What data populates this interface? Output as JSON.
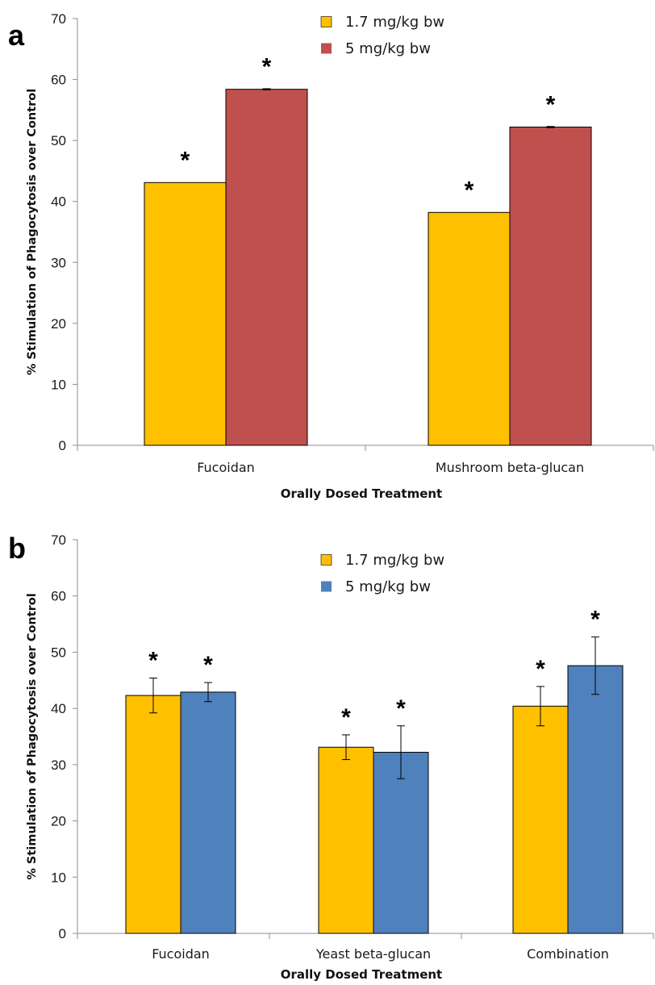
{
  "chart_data": [
    {
      "panel_label": "a",
      "type": "bar",
      "xlabel": "Orally Dosed Treatment",
      "ylabel": "% Stimulation of Phagocytosis over Control",
      "ylim": [
        0,
        70
      ],
      "yticks": [
        "0",
        "10",
        "20",
        "30",
        "40",
        "50",
        "60",
        "70"
      ],
      "categories": [
        "Fucoidan",
        "Mushroom beta-glucan"
      ],
      "series": [
        {
          "name": "1.7 mg/kg bw",
          "color": "#FFC000",
          "values": [
            43.1,
            38.2
          ],
          "errors": [
            0,
            0
          ],
          "marks": [
            "*",
            "*"
          ]
        },
        {
          "name": "5 mg/kg bw",
          "color": "#C0504D",
          "values": [
            58.4,
            52.2
          ],
          "errors": [
            0.1,
            0.1
          ],
          "marks": [
            "*",
            "*"
          ]
        }
      ],
      "legend_position": "top-center",
      "grid": false
    },
    {
      "panel_label": "b",
      "type": "bar",
      "xlabel": "Orally Dosed Treatment",
      "ylabel": "% Stimulation of Phagocytosis over Control",
      "ylim": [
        0,
        70
      ],
      "yticks": [
        "0",
        "10",
        "20",
        "30",
        "40",
        "50",
        "60",
        "70"
      ],
      "categories": [
        "Fucoidan",
        "Yeast beta-glucan",
        "Combination"
      ],
      "series": [
        {
          "name": "1.7 mg/kg bw",
          "color": "#FFC000",
          "values": [
            42.3,
            33.1,
            40.4
          ],
          "errors": [
            3.1,
            2.2,
            3.5
          ],
          "marks": [
            "*",
            "*",
            "*"
          ]
        },
        {
          "name": "5 mg/kg bw",
          "color": "#4F81BD",
          "values": [
            42.9,
            32.2,
            47.6
          ],
          "errors": [
            1.7,
            4.7,
            5.1
          ],
          "marks": [
            "*",
            "*",
            "*"
          ]
        }
      ],
      "legend_position": "top-center",
      "grid": false
    }
  ]
}
